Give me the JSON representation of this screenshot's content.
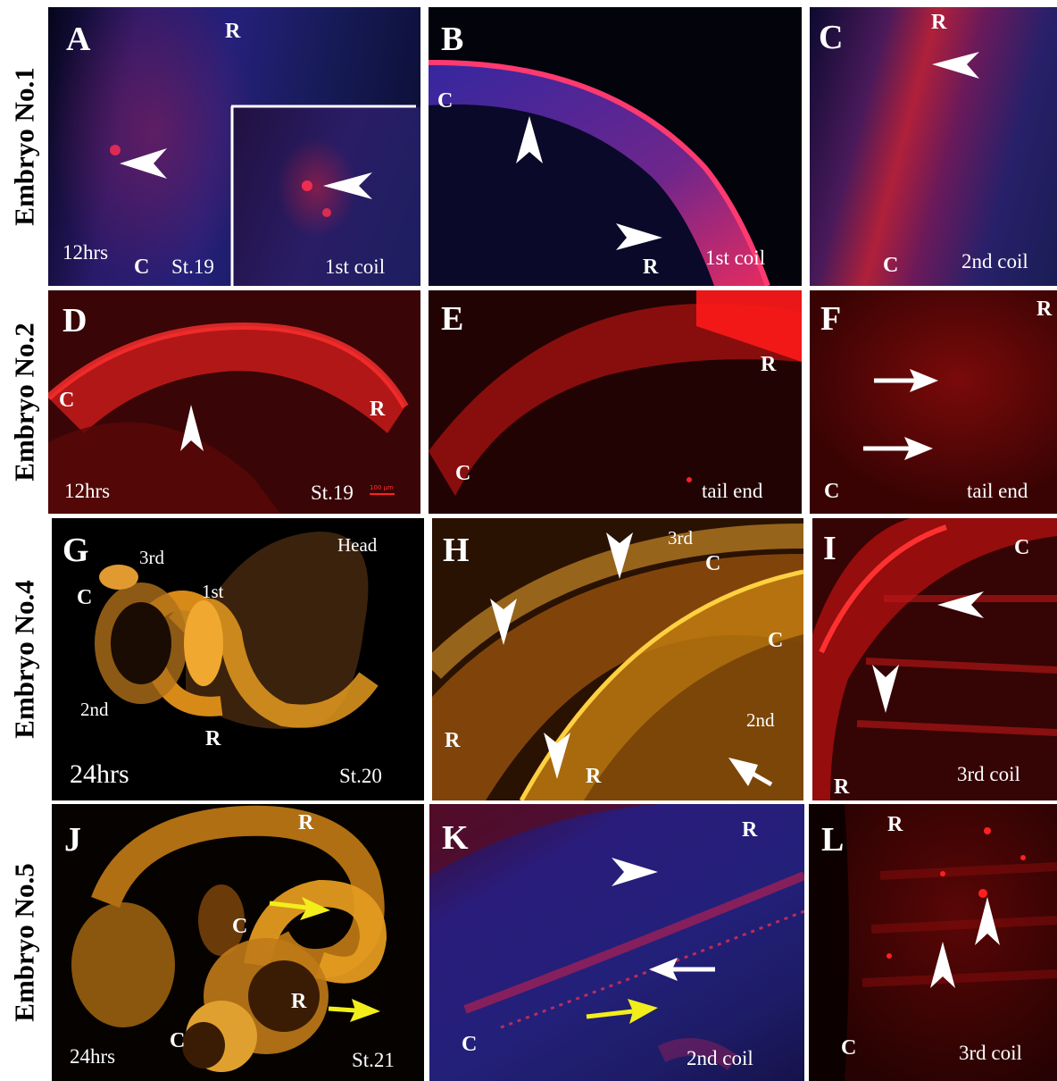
{
  "rows": [
    {
      "label": "Embryo No.1"
    },
    {
      "label": "Embryo No.2"
    },
    {
      "label": "Embryo No.4"
    },
    {
      "label": "Embryo No.5"
    }
  ],
  "panels": {
    "A": {
      "letter": "A",
      "orient_r": "R",
      "orient_c": "C",
      "time": "12hrs",
      "stage": "St.19",
      "inset": "1st coil"
    },
    "B": {
      "letter": "B",
      "orient_c": "C",
      "orient_r": "R",
      "caption": "1st coil"
    },
    "C": {
      "letter": "C",
      "orient_r": "R",
      "orient_c": "C",
      "caption": "2nd coil"
    },
    "D": {
      "letter": "D",
      "orient_c": "C",
      "orient_r": "R",
      "time": "12hrs",
      "stage": "St.19",
      "scale": "100 µm"
    },
    "E": {
      "letter": "E",
      "orient_r": "R",
      "orient_c": "C",
      "caption": "tail end"
    },
    "F": {
      "letter": "F",
      "orient_r": "R",
      "orient_c": "C",
      "caption": "tail end"
    },
    "G": {
      "letter": "G",
      "coil3": "3rd",
      "head": "Head",
      "orient_c": "C",
      "coil1": "1st",
      "coil2": "2nd",
      "orient_r": "R",
      "time": "24hrs",
      "stage": "St.20"
    },
    "H": {
      "letter": "H",
      "coil3": "3rd",
      "orient_c1": "C",
      "orient_c2": "C",
      "coil2": "2nd",
      "orient_r1": "R",
      "orient_r2": "R"
    },
    "I": {
      "letter": "I",
      "orient_c": "C",
      "orient_r": "R",
      "caption": "3rd coil"
    },
    "J": {
      "letter": "J",
      "orient_r1": "R",
      "orient_c1": "C",
      "orient_r2": "R",
      "orient_c2": "C",
      "time": "24hrs",
      "stage": "St.21"
    },
    "K": {
      "letter": "K",
      "orient_r": "R",
      "orient_c": "C",
      "caption": "2nd coil"
    },
    "L": {
      "letter": "L",
      "orient_r": "R",
      "orient_c": "C",
      "caption": "3rd coil"
    }
  },
  "colors": {
    "arrow_white": "#ffffff",
    "arrow_yellow": "#f2ee1c",
    "stain_red": "#ff2a2a",
    "stain_blue": "#1a1f8a",
    "stain_orange": "#e8a020"
  }
}
